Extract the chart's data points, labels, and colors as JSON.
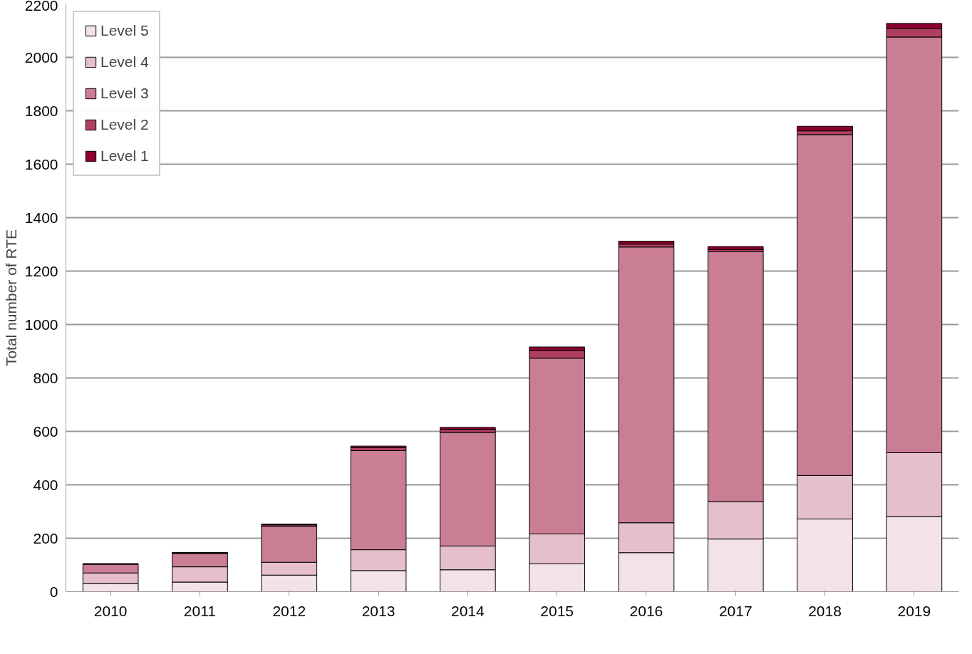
{
  "chart_data": {
    "type": "bar",
    "stacked": true,
    "ylabel": "Total number of RTE",
    "categories": [
      "2010",
      "2011",
      "2012",
      "2013",
      "2014",
      "2015",
      "2016",
      "2017",
      "2018",
      "2019"
    ],
    "series": [
      {
        "name": "Level 5",
        "color": "#f3e3e9",
        "values": [
          30,
          36,
          62,
          79,
          82,
          104,
          146,
          197,
          272,
          281
        ]
      },
      {
        "name": "Level 4",
        "color": "#e6bfcc",
        "values": [
          40,
          57,
          48,
          78,
          89,
          112,
          112,
          140,
          163,
          239
        ]
      },
      {
        "name": "Level 3",
        "color": "#ca7e94",
        "values": [
          33,
          50,
          135,
          371,
          425,
          658,
          1032,
          936,
          1276,
          1556
        ]
      },
      {
        "name": "Level 2",
        "color": "#b0405f",
        "values": [
          null,
          2,
          5,
          11,
          11,
          28,
          11,
          7,
          14,
          31
        ]
      },
      {
        "name": "Level 1",
        "color": "#8b0030",
        "values": [
          2,
          2,
          3,
          6,
          8,
          14,
          11,
          12,
          17,
          20
        ]
      }
    ],
    "ylim": [
      0,
      2200
    ],
    "yticks": [
      0,
      200,
      400,
      600,
      800,
      1000,
      1200,
      1400,
      1600,
      1800,
      2000,
      2200
    ],
    "grid": "y",
    "legend": "top left"
  }
}
